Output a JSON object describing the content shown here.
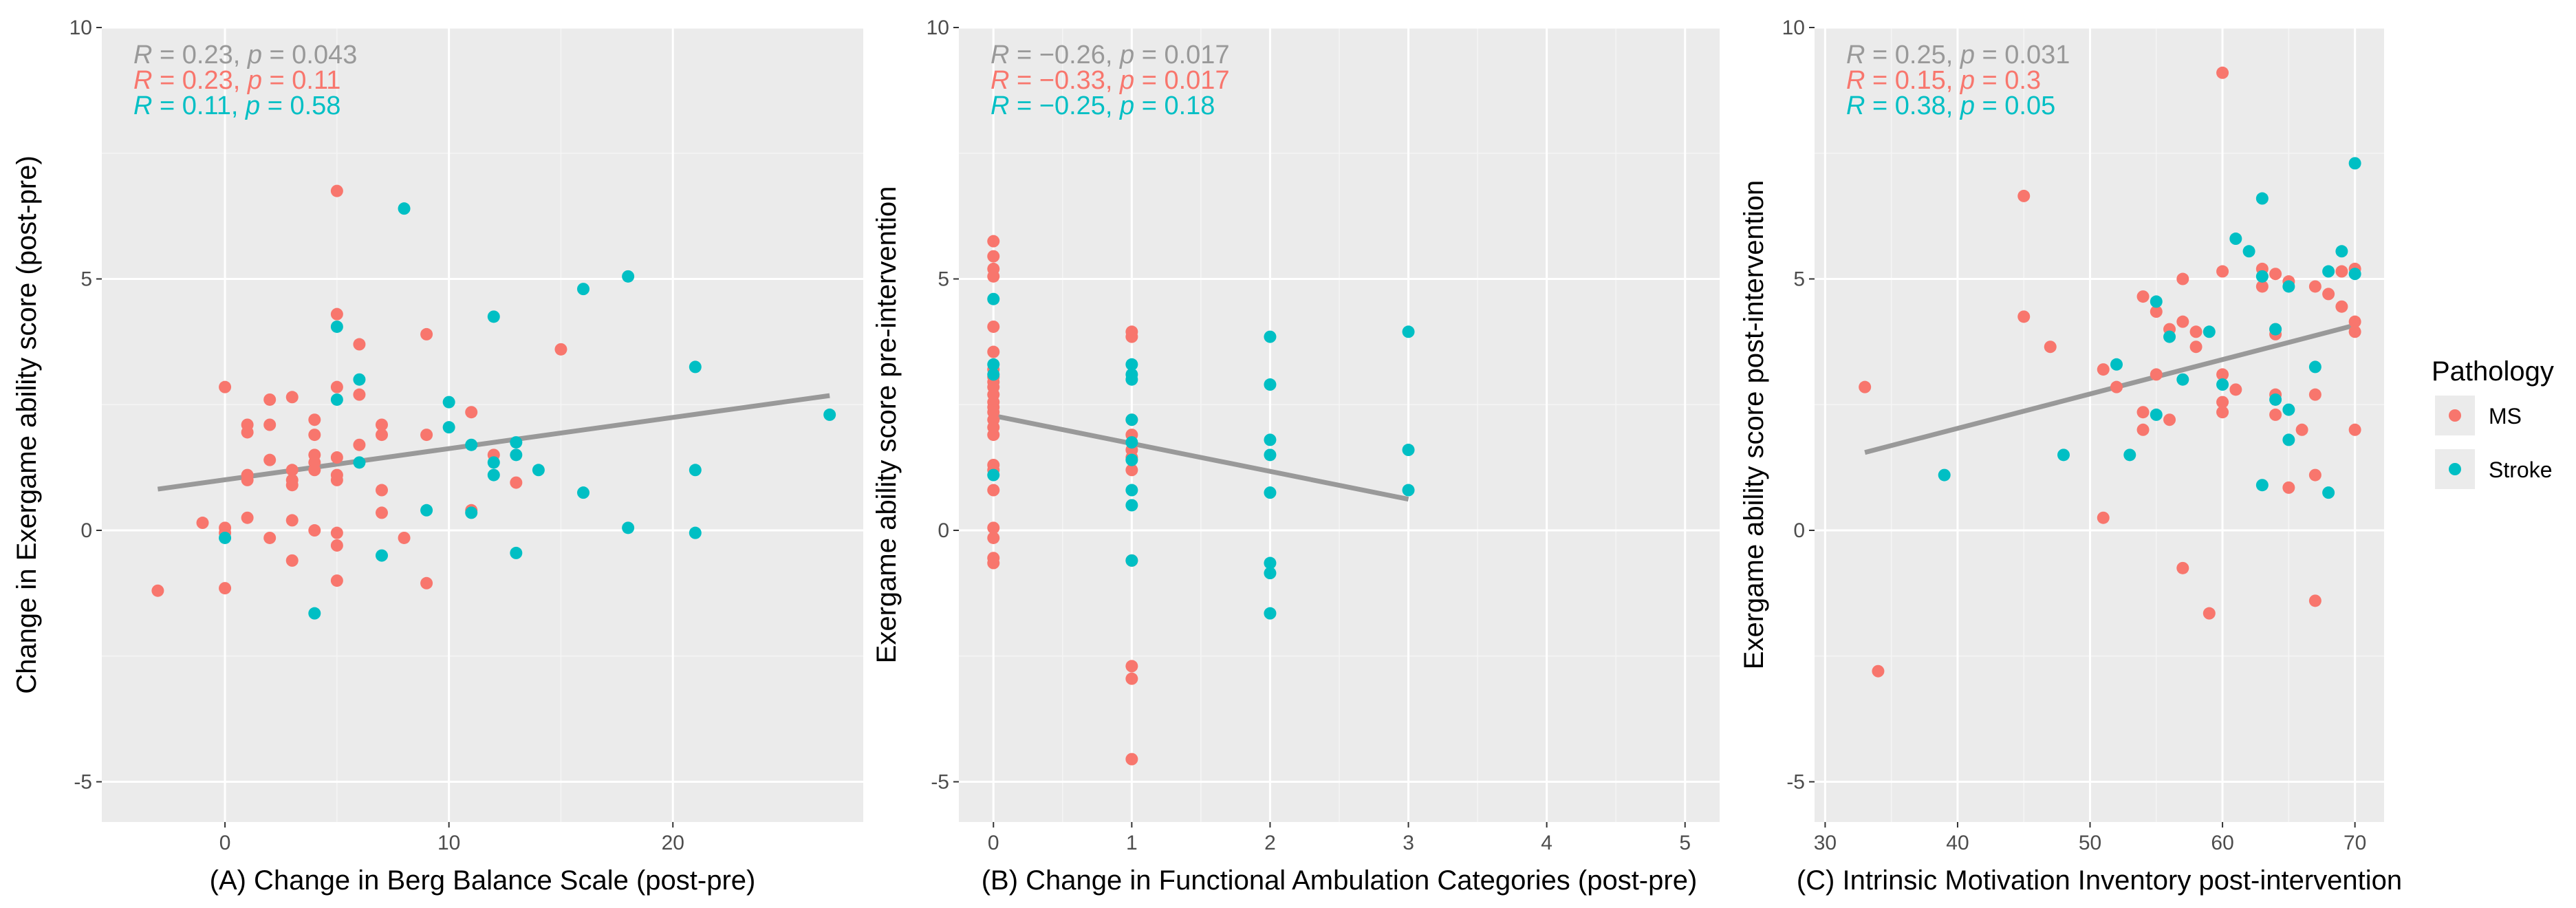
{
  "colors": {
    "ms": "#F8766D",
    "stroke": "#00BFC4",
    "all": "#999999",
    "fit": "#999999"
  },
  "legend": {
    "title": "Pathology",
    "items": [
      {
        "label": "MS",
        "color": "#F8766D"
      },
      {
        "label": "Stroke",
        "color": "#00BFC4"
      }
    ]
  },
  "chart_data": [
    {
      "type": "scatter",
      "id": "A",
      "xlabel": "(A) Change in Berg Balance Scale (post-pre)",
      "ylabel": "Change in Exergame ability score (post-pre)",
      "xlim": [
        -5.5,
        28.5
      ],
      "ylim": [
        -5.8,
        10
      ],
      "xticks": [
        0,
        10,
        20
      ],
      "yticks": [
        -5,
        0,
        5,
        10
      ],
      "stats": [
        {
          "group": "all",
          "r": "0.23",
          "p": "0.043"
        },
        {
          "group": "ms",
          "r": "0.23",
          "p": "0.11"
        },
        {
          "group": "stroke",
          "r": "0.11",
          "p": "0.58"
        }
      ],
      "fit": {
        "x": [
          -3,
          27
        ],
        "y": [
          0.82,
          2.68
        ]
      },
      "series": [
        {
          "name": "MS",
          "points": [
            [
              -3,
              -1.2
            ],
            [
              -1,
              0.15
            ],
            [
              0,
              2.85
            ],
            [
              0,
              0.05
            ],
            [
              0,
              -0.05
            ],
            [
              0,
              -1.15
            ],
            [
              1,
              2.1
            ],
            [
              1,
              1.95
            ],
            [
              1,
              1.1
            ],
            [
              1,
              1.0
            ],
            [
              1,
              0.25
            ],
            [
              2,
              2.6
            ],
            [
              2,
              2.1
            ],
            [
              2,
              1.4
            ],
            [
              2,
              -0.15
            ],
            [
              3,
              2.65
            ],
            [
              3,
              1.2
            ],
            [
              3,
              1.0
            ],
            [
              3,
              0.9
            ],
            [
              3,
              0.2
            ],
            [
              3,
              -0.6
            ],
            [
              4,
              2.2
            ],
            [
              4,
              1.9
            ],
            [
              4,
              1.5
            ],
            [
              4,
              1.35
            ],
            [
              4,
              1.2
            ],
            [
              4,
              0.0
            ],
            [
              5,
              6.75
            ],
            [
              5,
              4.3
            ],
            [
              5,
              2.85
            ],
            [
              5,
              1.45
            ],
            [
              5,
              1.1
            ],
            [
              5,
              1.0
            ],
            [
              5,
              -0.05
            ],
            [
              5,
              -0.3
            ],
            [
              5,
              -1.0
            ],
            [
              6,
              3.7
            ],
            [
              6,
              2.7
            ],
            [
              6,
              1.7
            ],
            [
              7,
              2.1
            ],
            [
              7,
              1.9
            ],
            [
              7,
              0.8
            ],
            [
              7,
              0.35
            ],
            [
              8,
              -0.15
            ],
            [
              9,
              3.9
            ],
            [
              9,
              1.9
            ],
            [
              9,
              -1.05
            ],
            [
              11,
              2.35
            ],
            [
              11,
              0.4
            ],
            [
              12,
              1.5
            ],
            [
              13,
              0.95
            ],
            [
              15,
              3.6
            ]
          ]
        },
        {
          "name": "Stroke",
          "points": [
            [
              0,
              -0.15
            ],
            [
              4,
              -1.65
            ],
            [
              5,
              4.05
            ],
            [
              5,
              2.6
            ],
            [
              6,
              3.0
            ],
            [
              6,
              1.35
            ],
            [
              7,
              -0.5
            ],
            [
              8,
              6.4
            ],
            [
              9,
              0.4
            ],
            [
              10,
              2.55
            ],
            [
              10,
              2.05
            ],
            [
              11,
              1.7
            ],
            [
              11,
              0.35
            ],
            [
              12,
              4.25
            ],
            [
              12,
              1.35
            ],
            [
              12,
              1.1
            ],
            [
              13,
              1.75
            ],
            [
              13,
              1.5
            ],
            [
              13,
              -0.45
            ],
            [
              14,
              1.2
            ],
            [
              16,
              4.8
            ],
            [
              16,
              0.75
            ],
            [
              18,
              5.05
            ],
            [
              18,
              0.05
            ],
            [
              21,
              3.25
            ],
            [
              21,
              1.2
            ],
            [
              21,
              -0.05
            ],
            [
              27,
              2.3
            ]
          ]
        }
      ]
    },
    {
      "type": "scatter",
      "id": "B",
      "xlabel": "(B) Change in Functional Ambulation Categories (post-pre)",
      "ylabel": "Exergame ability score pre-intervention",
      "xlim": [
        -0.25,
        5.25
      ],
      "ylim": [
        -5.8,
        10
      ],
      "xticks": [
        0,
        1,
        2,
        3,
        4,
        5
      ],
      "yticks": [
        -5,
        0,
        5,
        10
      ],
      "stats": [
        {
          "group": "all",
          "r": "−0.26",
          "p": "0.017"
        },
        {
          "group": "ms",
          "r": "−0.33",
          "p": "0.017"
        },
        {
          "group": "stroke",
          "r": "−0.25",
          "p": "0.18"
        }
      ],
      "fit": {
        "x": [
          0,
          3
        ],
        "y": [
          2.28,
          0.62
        ]
      },
      "series": [
        {
          "name": "MS",
          "points": [
            [
              0,
              5.75
            ],
            [
              0,
              5.45
            ],
            [
              0,
              5.2
            ],
            [
              0,
              5.05
            ],
            [
              0,
              4.05
            ],
            [
              0,
              3.55
            ],
            [
              0,
              3.2
            ],
            [
              0,
              3.05
            ],
            [
              0,
              2.95
            ],
            [
              0,
              2.85
            ],
            [
              0,
              2.7
            ],
            [
              0,
              2.55
            ],
            [
              0,
              2.45
            ],
            [
              0,
              2.35
            ],
            [
              0,
              2.2
            ],
            [
              0,
              2.05
            ],
            [
              0,
              1.9
            ],
            [
              0,
              1.3
            ],
            [
              0,
              1.2
            ],
            [
              0,
              0.8
            ],
            [
              0,
              0.05
            ],
            [
              0,
              -0.15
            ],
            [
              0,
              -0.55
            ],
            [
              0,
              -0.65
            ],
            [
              1,
              3.95
            ],
            [
              1,
              3.85
            ],
            [
              1,
              2.2
            ],
            [
              1,
              1.9
            ],
            [
              1,
              1.6
            ],
            [
              1,
              1.45
            ],
            [
              1,
              1.2
            ],
            [
              1,
              -0.6
            ],
            [
              1,
              -2.7
            ],
            [
              1,
              -2.95
            ],
            [
              1,
              -4.55
            ]
          ]
        },
        {
          "name": "Stroke",
          "points": [
            [
              0,
              4.6
            ],
            [
              0,
              3.3
            ],
            [
              0,
              3.1
            ],
            [
              0,
              1.1
            ],
            [
              1,
              3.3
            ],
            [
              1,
              3.1
            ],
            [
              1,
              3.0
            ],
            [
              1,
              2.2
            ],
            [
              1,
              1.75
            ],
            [
              1,
              1.4
            ],
            [
              1,
              0.8
            ],
            [
              1,
              0.5
            ],
            [
              1,
              -0.6
            ],
            [
              2,
              3.85
            ],
            [
              2,
              2.9
            ],
            [
              2,
              1.8
            ],
            [
              2,
              1.5
            ],
            [
              2,
              0.75
            ],
            [
              2,
              -0.65
            ],
            [
              2,
              -0.85
            ],
            [
              2,
              -1.65
            ],
            [
              3,
              3.95
            ],
            [
              3,
              1.6
            ],
            [
              3,
              0.8
            ]
          ]
        }
      ]
    },
    {
      "type": "scatter",
      "id": "C",
      "xlabel": "(C) Intrinsic Motivation Inventory post-intervention",
      "ylabel": "Exergame ability score post-intervention",
      "xlim": [
        29.2,
        72.2
      ],
      "ylim": [
        -5.8,
        10
      ],
      "xticks": [
        30,
        40,
        50,
        60,
        70
      ],
      "yticks": [
        -5,
        0,
        5,
        10
      ],
      "stats": [
        {
          "group": "all",
          "r": "0.25",
          "p": "0.031"
        },
        {
          "group": "ms",
          "r": "0.15",
          "p": "0.3"
        },
        {
          "group": "stroke",
          "r": "0.38",
          "p": "0.05"
        }
      ],
      "fit": {
        "x": [
          33,
          70
        ],
        "y": [
          1.55,
          4.08
        ]
      },
      "series": [
        {
          "name": "MS",
          "points": [
            [
              33,
              2.85
            ],
            [
              34,
              -2.8
            ],
            [
              45,
              6.65
            ],
            [
              45,
              4.25
            ],
            [
              47,
              3.65
            ],
            [
              51,
              0.25
            ],
            [
              51,
              3.2
            ],
            [
              52,
              2.85
            ],
            [
              54,
              4.65
            ],
            [
              54,
              2.35
            ],
            [
              54,
              2.0
            ],
            [
              55,
              3.1
            ],
            [
              55,
              4.35
            ],
            [
              56,
              4.0
            ],
            [
              56,
              2.2
            ],
            [
              57,
              4.15
            ],
            [
              57,
              5.0
            ],
            [
              57,
              -0.75
            ],
            [
              58,
              3.95
            ],
            [
              58,
              3.65
            ],
            [
              59,
              -1.65
            ],
            [
              60,
              9.1
            ],
            [
              60,
              5.15
            ],
            [
              60,
              3.1
            ],
            [
              60,
              2.55
            ],
            [
              60,
              2.35
            ],
            [
              61,
              2.8
            ],
            [
              63,
              5.2
            ],
            [
              63,
              4.85
            ],
            [
              64,
              5.1
            ],
            [
              64,
              4.0
            ],
            [
              64,
              3.9
            ],
            [
              64,
              2.7
            ],
            [
              64,
              2.3
            ],
            [
              65,
              0.85
            ],
            [
              65,
              4.95
            ],
            [
              66,
              2.0
            ],
            [
              67,
              4.85
            ],
            [
              67,
              2.7
            ],
            [
              67,
              1.1
            ],
            [
              67,
              -1.4
            ],
            [
              68,
              4.7
            ],
            [
              69,
              5.15
            ],
            [
              69,
              4.45
            ],
            [
              70,
              5.2
            ],
            [
              70,
              4.15
            ],
            [
              70,
              3.95
            ],
            [
              70,
              2.0
            ]
          ]
        },
        {
          "name": "Stroke",
          "points": [
            [
              39,
              1.1
            ],
            [
              48,
              1.5
            ],
            [
              52,
              3.3
            ],
            [
              53,
              1.5
            ],
            [
              55,
              4.55
            ],
            [
              55,
              2.3
            ],
            [
              56,
              3.85
            ],
            [
              57,
              3.0
            ],
            [
              59,
              3.95
            ],
            [
              60,
              2.9
            ],
            [
              61,
              5.8
            ],
            [
              62,
              5.55
            ],
            [
              63,
              6.6
            ],
            [
              63,
              5.05
            ],
            [
              63,
              0.9
            ],
            [
              64,
              2.6
            ],
            [
              64,
              4.0
            ],
            [
              65,
              4.85
            ],
            [
              65,
              2.4
            ],
            [
              65,
              1.8
            ],
            [
              67,
              3.25
            ],
            [
              68,
              5.15
            ],
            [
              68,
              0.75
            ],
            [
              69,
              5.55
            ],
            [
              70,
              7.3
            ],
            [
              70,
              5.1
            ]
          ]
        }
      ]
    }
  ]
}
